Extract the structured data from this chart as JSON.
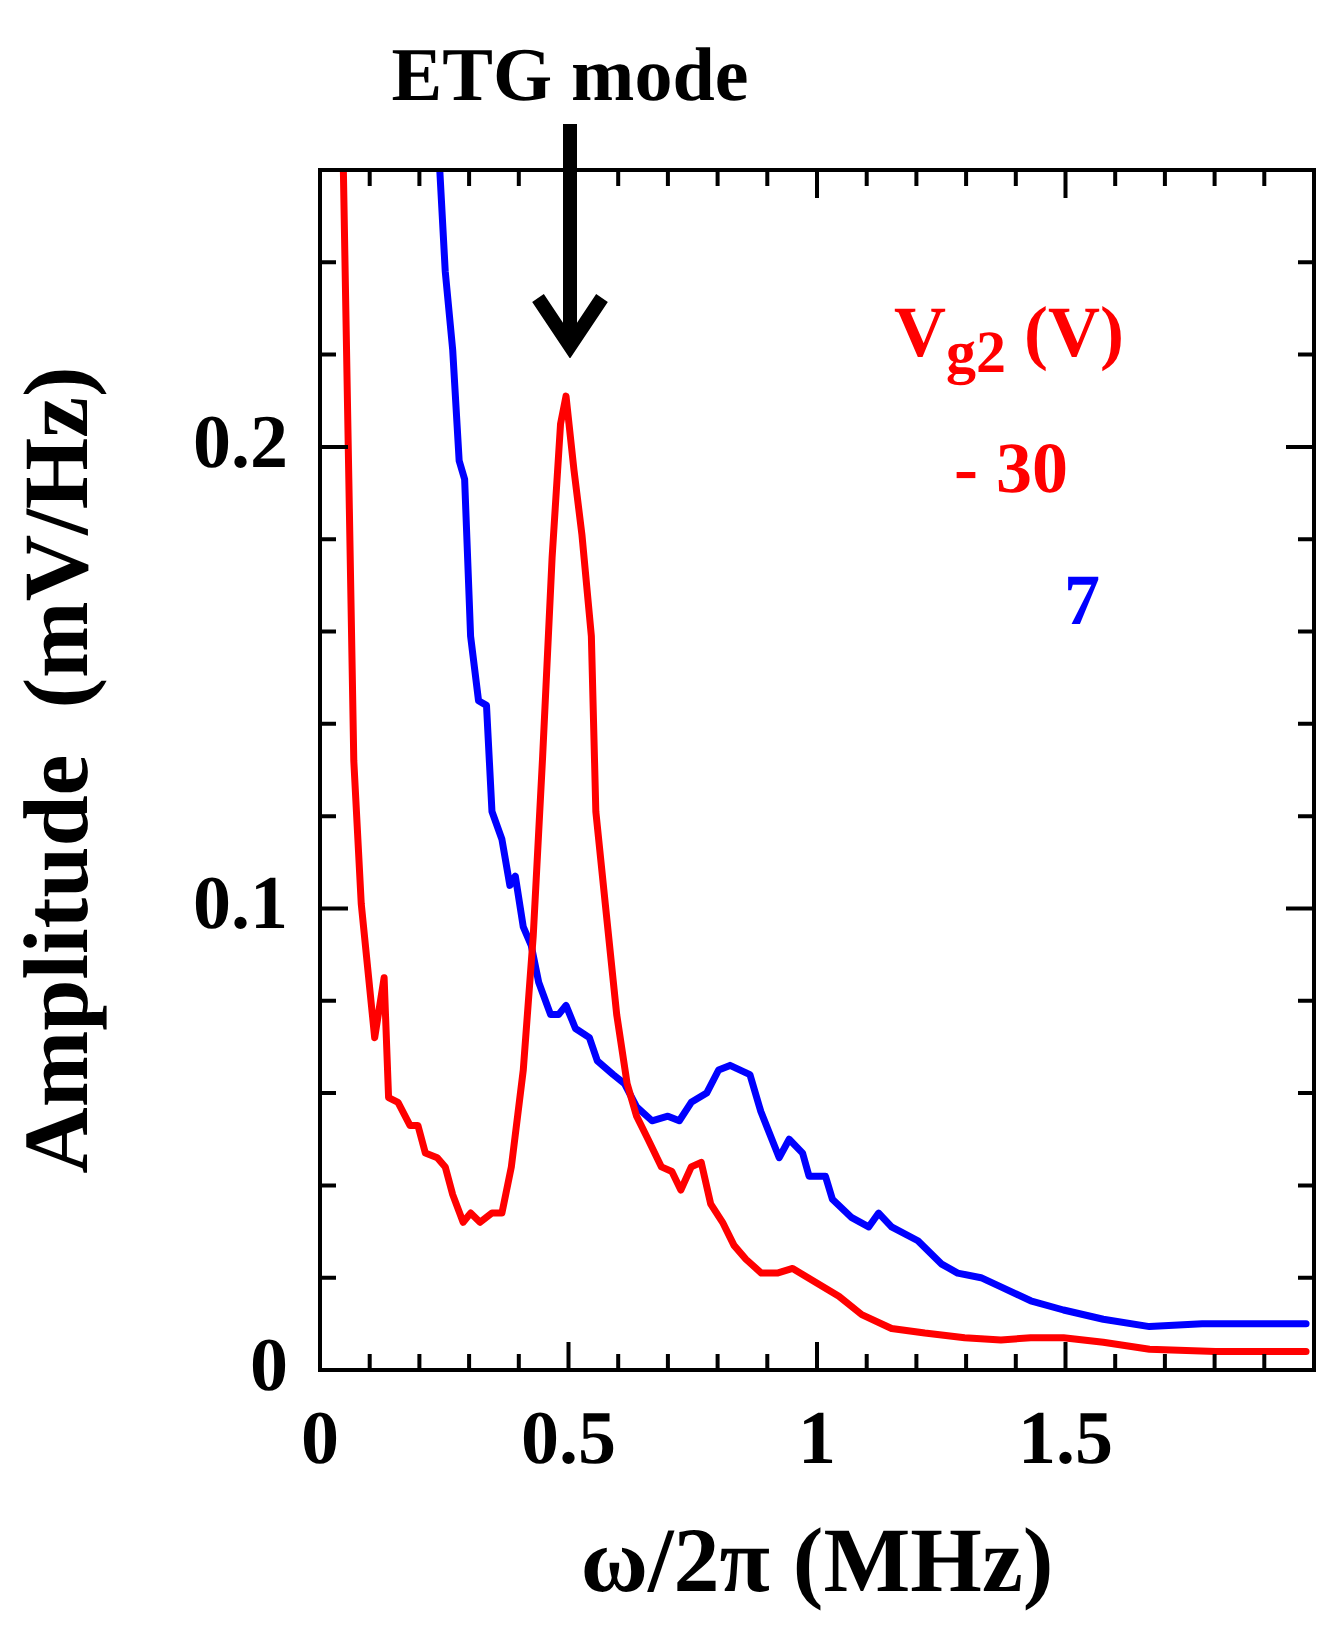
{
  "chart_data": {
    "type": "line",
    "xlabel": "ω/2π (MHz)",
    "ylabel": "Amplitude  (mV/Hz)",
    "legend_title": "V$_{g2}$ (V)",
    "legend": "top right",
    "marker": "none",
    "line_style": "solid",
    "grid": false,
    "xlim": [
      0,
      2
    ],
    "ylim": [
      0,
      0.26
    ],
    "xticks": [
      0,
      {
        "value": 0.1,
        "label": null
      },
      {
        "value": 0.2,
        "label": null
      },
      {
        "value": 0.3,
        "label": null
      },
      {
        "value": 0.4,
        "label": null
      },
      0.5,
      {
        "value": 0.6,
        "label": null
      },
      {
        "value": 0.7,
        "label": null
      },
      {
        "value": 0.8,
        "label": null
      },
      {
        "value": 0.9,
        "label": null
      },
      1,
      {
        "value": 1.1,
        "label": null
      },
      {
        "value": 1.2,
        "label": null
      },
      {
        "value": 1.3,
        "label": null
      },
      {
        "value": 1.4,
        "label": null
      },
      1.5,
      {
        "value": 1.6,
        "label": null
      },
      {
        "value": 1.7,
        "label": null
      },
      {
        "value": 1.8,
        "label": null
      },
      {
        "value": 1.9,
        "label": null
      }
    ],
    "yticks": [
      0,
      {
        "value": 0.02,
        "label": null
      },
      {
        "value": 0.04,
        "label": null
      },
      {
        "value": 0.06,
        "label": null
      },
      {
        "value": 0.08,
        "label": null
      },
      0.1,
      {
        "value": 0.12,
        "label": null
      },
      {
        "value": 0.14,
        "label": null
      },
      {
        "value": 0.16,
        "label": null
      },
      {
        "value": 0.18,
        "label": null
      },
      0.2,
      {
        "value": 0.22,
        "label": null
      },
      {
        "value": 0.24,
        "label": null
      }
    ],
    "annotations": [
      "ETG mode"
    ],
    "series": [
      {
        "name": "- 30",
        "color": "#ff0000",
        "x": [
          0.047,
          0.058,
          0.068,
          0.083,
          0.11,
          0.129,
          0.138,
          0.157,
          0.181,
          0.197,
          0.212,
          0.236,
          0.252,
          0.267,
          0.288,
          0.303,
          0.322,
          0.346,
          0.366,
          0.385,
          0.409,
          0.429,
          0.448,
          0.467,
          0.484,
          0.495,
          0.511,
          0.527,
          0.546,
          0.555,
          0.574,
          0.597,
          0.618,
          0.637,
          0.66,
          0.687,
          0.708,
          0.726,
          0.747,
          0.767,
          0.786,
          0.81,
          0.833,
          0.857,
          0.888,
          0.92,
          0.951,
          0.997,
          1.044,
          1.09,
          1.15,
          1.217,
          1.297,
          1.37,
          1.43,
          1.496,
          1.576,
          1.669,
          1.802,
          1.984
        ],
        "values": [
          0.26,
          0.193,
          0.132,
          0.101,
          0.072,
          0.085,
          0.059,
          0.058,
          0.053,
          0.053,
          0.047,
          0.046,
          0.044,
          0.038,
          0.032,
          0.034,
          0.032,
          0.034,
          0.034,
          0.044,
          0.065,
          0.094,
          0.133,
          0.176,
          0.205,
          0.211,
          0.195,
          0.181,
          0.159,
          0.121,
          0.101,
          0.077,
          0.062,
          0.055,
          0.05,
          0.044,
          0.043,
          0.039,
          0.044,
          0.045,
          0.036,
          0.032,
          0.027,
          0.024,
          0.021,
          0.021,
          0.022,
          0.019,
          0.016,
          0.012,
          0.009,
          0.008,
          0.007,
          0.0065,
          0.007,
          0.007,
          0.006,
          0.0045,
          0.004,
          0.004
        ]
      },
      {
        "name": "7",
        "color": "#0000ff",
        "x": [
          0.241,
          0.252,
          0.267,
          0.28,
          0.291,
          0.303,
          0.319,
          0.335,
          0.346,
          0.366,
          0.382,
          0.393,
          0.409,
          0.425,
          0.44,
          0.464,
          0.48,
          0.495,
          0.514,
          0.542,
          0.558,
          0.59,
          0.613,
          0.637,
          0.668,
          0.7,
          0.723,
          0.747,
          0.778,
          0.802,
          0.825,
          0.865,
          0.887,
          0.924,
          0.944,
          0.971,
          0.984,
          1.017,
          1.031,
          1.07,
          1.104,
          1.124,
          1.15,
          1.203,
          1.25,
          1.283,
          1.33,
          1.37,
          1.43,
          1.496,
          1.576,
          1.669,
          1.775,
          1.984
        ],
        "values": [
          0.26,
          0.238,
          0.221,
          0.197,
          0.193,
          0.159,
          0.145,
          0.144,
          0.121,
          0.115,
          0.105,
          0.107,
          0.096,
          0.092,
          0.084,
          0.077,
          0.077,
          0.079,
          0.074,
          0.072,
          0.067,
          0.064,
          0.062,
          0.057,
          0.054,
          0.055,
          0.054,
          0.058,
          0.06,
          0.065,
          0.066,
          0.064,
          0.056,
          0.046,
          0.05,
          0.047,
          0.042,
          0.042,
          0.037,
          0.033,
          0.031,
          0.034,
          0.031,
          0.028,
          0.023,
          0.021,
          0.02,
          0.018,
          0.015,
          0.013,
          0.011,
          0.0094,
          0.01,
          0.01
        ]
      }
    ]
  }
}
